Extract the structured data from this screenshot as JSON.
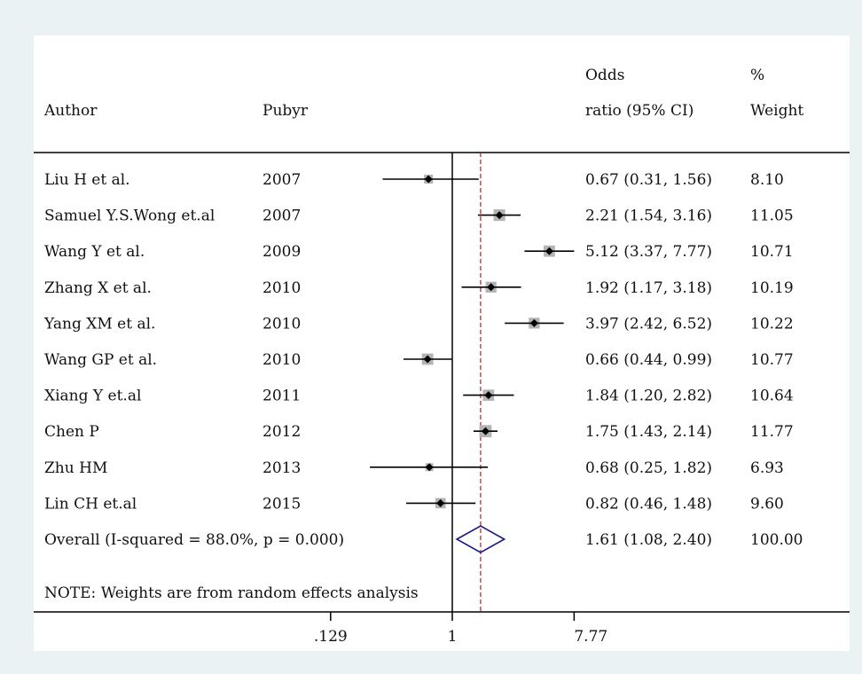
{
  "chart_data": {
    "type": "forest",
    "headers": {
      "author": "Author",
      "pubyr": "Pubyr",
      "or_line1": "Odds",
      "or_line2": "ratio (95% CI)",
      "weight_line1": "%",
      "weight_line2": "Weight"
    },
    "studies": [
      {
        "author": "Liu H et al.",
        "pubyr": "2007",
        "or": 0.67,
        "lo": 0.31,
        "hi": 1.56,
        "or_text": "0.67 (0.31, 1.56)",
        "weight": "8.10"
      },
      {
        "author": "Samuel Y.S.Wong et.al",
        "pubyr": "2007",
        "or": 2.21,
        "lo": 1.54,
        "hi": 3.16,
        "or_text": "2.21 (1.54, 3.16)",
        "weight": "11.05"
      },
      {
        "author": "Wang Y et al.",
        "pubyr": "2009",
        "or": 5.12,
        "lo": 3.37,
        "hi": 7.77,
        "or_text": "5.12 (3.37, 7.77)",
        "weight": "10.71"
      },
      {
        "author": "Zhang X et al.",
        "pubyr": "2010",
        "or": 1.92,
        "lo": 1.17,
        "hi": 3.18,
        "or_text": "1.92 (1.17, 3.18)",
        "weight": "10.19"
      },
      {
        "author": "Yang XM et al.",
        "pubyr": "2010",
        "or": 3.97,
        "lo": 2.42,
        "hi": 6.52,
        "or_text": "3.97 (2.42, 6.52)",
        "weight": "10.22"
      },
      {
        "author": "Wang GP et al.",
        "pubyr": "2010",
        "or": 0.66,
        "lo": 0.44,
        "hi": 0.99,
        "or_text": "0.66 (0.44, 0.99)",
        "weight": "10.77"
      },
      {
        "author": "Xiang Y et.al",
        "pubyr": "2011",
        "or": 1.84,
        "lo": 1.2,
        "hi": 2.82,
        "or_text": "1.84 (1.20, 2.82)",
        "weight": "10.64"
      },
      {
        "author": "Chen P",
        "pubyr": "2012",
        "or": 1.75,
        "lo": 1.43,
        "hi": 2.14,
        "or_text": "1.75 (1.43, 2.14)",
        "weight": "11.77"
      },
      {
        "author": "Zhu HM",
        "pubyr": "2013",
        "or": 0.68,
        "lo": 0.25,
        "hi": 1.82,
        "or_text": "0.68 (0.25, 1.82)",
        "weight": "6.93"
      },
      {
        "author": "Lin CH et.al",
        "pubyr": "2015",
        "or": 0.82,
        "lo": 0.46,
        "hi": 1.48,
        "or_text": "0.82 (0.46, 1.48)",
        "weight": "9.60"
      }
    ],
    "overall": {
      "label": "Overall  (I-squared = 88.0%, p = 0.000)",
      "or": 1.61,
      "lo": 1.08,
      "hi": 2.4,
      "or_text": "1.61 (1.08, 2.40)",
      "weight": "100.00"
    },
    "note": "NOTE: Weights are from random effects analysis",
    "x_scale": "log",
    "x_ticks": [
      {
        "value": 0.129,
        "label": ".129"
      },
      {
        "value": 1,
        "label": "1"
      },
      {
        "value": 7.77,
        "label": "7.77"
      }
    ],
    "reference_line": 1,
    "colors": {
      "background": "#eaf2f3",
      "panel": "#ffffff",
      "ci_line": "#000000",
      "weight_box": "#b3b3b3",
      "overall_diamond": "#1a1a80",
      "overall_line": "#b02020"
    }
  }
}
